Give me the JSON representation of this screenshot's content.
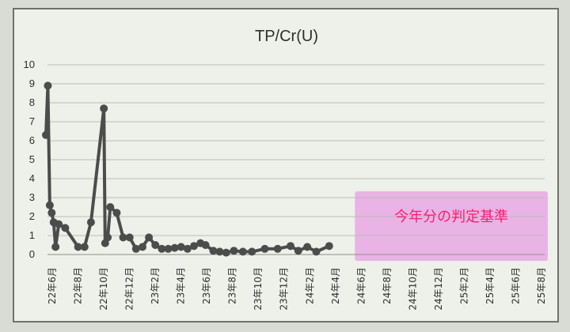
{
  "chart_data": {
    "type": "line",
    "title": "TP/Cr(U)",
    "ylim": [
      0,
      10
    ],
    "yticks": [
      "10",
      "9",
      "8",
      "7",
      "6",
      "5",
      "4",
      "3",
      "2",
      "1",
      "0"
    ],
    "grid": true,
    "x_tick_labels": [
      "22年6月",
      "22年8月",
      "22年10月",
      "22年12月",
      "23年2月",
      "23年4月",
      "23年6月",
      "23年8月",
      "23年10月",
      "23年12月",
      "24年2月",
      "24年4月",
      "24年6月",
      "24年8月",
      "24年10月",
      "24年12月",
      "25年2月",
      "25年4月",
      "25年6月",
      "25年8月"
    ],
    "series": [
      {
        "values": [
          6.3,
          8.9,
          2.6,
          2.2,
          1.7,
          0.4,
          1.6,
          1.4,
          0.4,
          0.4,
          1.7,
          7.7,
          0.6,
          0.9,
          2.5,
          2.2,
          0.9,
          0.9,
          0.3,
          0.4,
          0.9,
          0.5,
          0.3,
          0.3,
          0.35,
          0.4,
          0.3,
          0.45,
          0.6,
          0.5,
          0.2,
          0.15,
          0.1,
          0.2,
          0.15,
          0.15,
          0.3,
          0.3,
          0.45,
          0.2,
          0.4,
          0.15,
          0.45
        ],
        "x_index": [
          0.0,
          0.15,
          0.3,
          0.45,
          0.6,
          0.75,
          1.0,
          1.5,
          2.5,
          3.0,
          3.5,
          4.5,
          4.6,
          4.8,
          5.0,
          5.5,
          6.0,
          6.5,
          7.0,
          7.5,
          8.0,
          8.5,
          9.0,
          9.5,
          10.0,
          10.5,
          11.0,
          11.5,
          12.0,
          12.4,
          13.0,
          13.5,
          14.0,
          14.6,
          15.3,
          16.0,
          17.0,
          18.0,
          19.0,
          19.6,
          20.3,
          21.0,
          22.0
        ],
        "color": "#4a4d4b"
      }
    ],
    "annotation": {
      "text": "今年分の判定基準",
      "highlight_color": "#e8a8e4",
      "from_tick": "24年6月",
      "to_tick": "25年8月"
    }
  }
}
